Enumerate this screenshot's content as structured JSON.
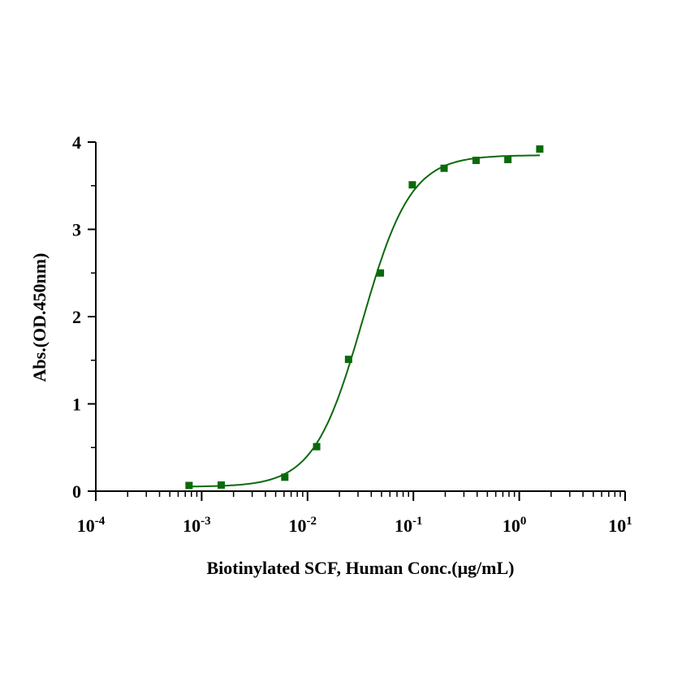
{
  "chart_data": {
    "type": "scatter",
    "title": "",
    "xlabel": "Biotinylated SCF, Human Conc.(μg/mL)",
    "ylabel": "Abs.(OD.450nm)",
    "xscale": "log",
    "xlim": [
      0.0001,
      10
    ],
    "ylim": [
      0,
      4
    ],
    "x_ticks": [
      {
        "base": "10",
        "exp": "-4"
      },
      {
        "base": "10",
        "exp": "-3"
      },
      {
        "base": "10",
        "exp": "-2"
      },
      {
        "base": "10",
        "exp": "-1"
      },
      {
        "base": "10",
        "exp": "0"
      },
      {
        "base": "10",
        "exp": "1"
      }
    ],
    "y_ticks": [
      "0",
      "1",
      "2",
      "3",
      "4"
    ],
    "grid": false,
    "color": "#0a6a0a",
    "series": [
      {
        "name": "Biotinylated SCF, Human",
        "x": [
          0.00076,
          0.00153,
          0.0061,
          0.0122,
          0.0244,
          0.0488,
          0.0977,
          0.195,
          0.391,
          0.781,
          1.5625
        ],
        "y": [
          0.065,
          0.07,
          0.16,
          0.51,
          1.51,
          2.5,
          3.51,
          3.7,
          3.79,
          3.8,
          3.92
        ]
      }
    ],
    "fit": {
      "model": "4PL",
      "bottom": 0.05,
      "top": 3.85,
      "ec50": 0.033,
      "hill": 1.9
    }
  }
}
